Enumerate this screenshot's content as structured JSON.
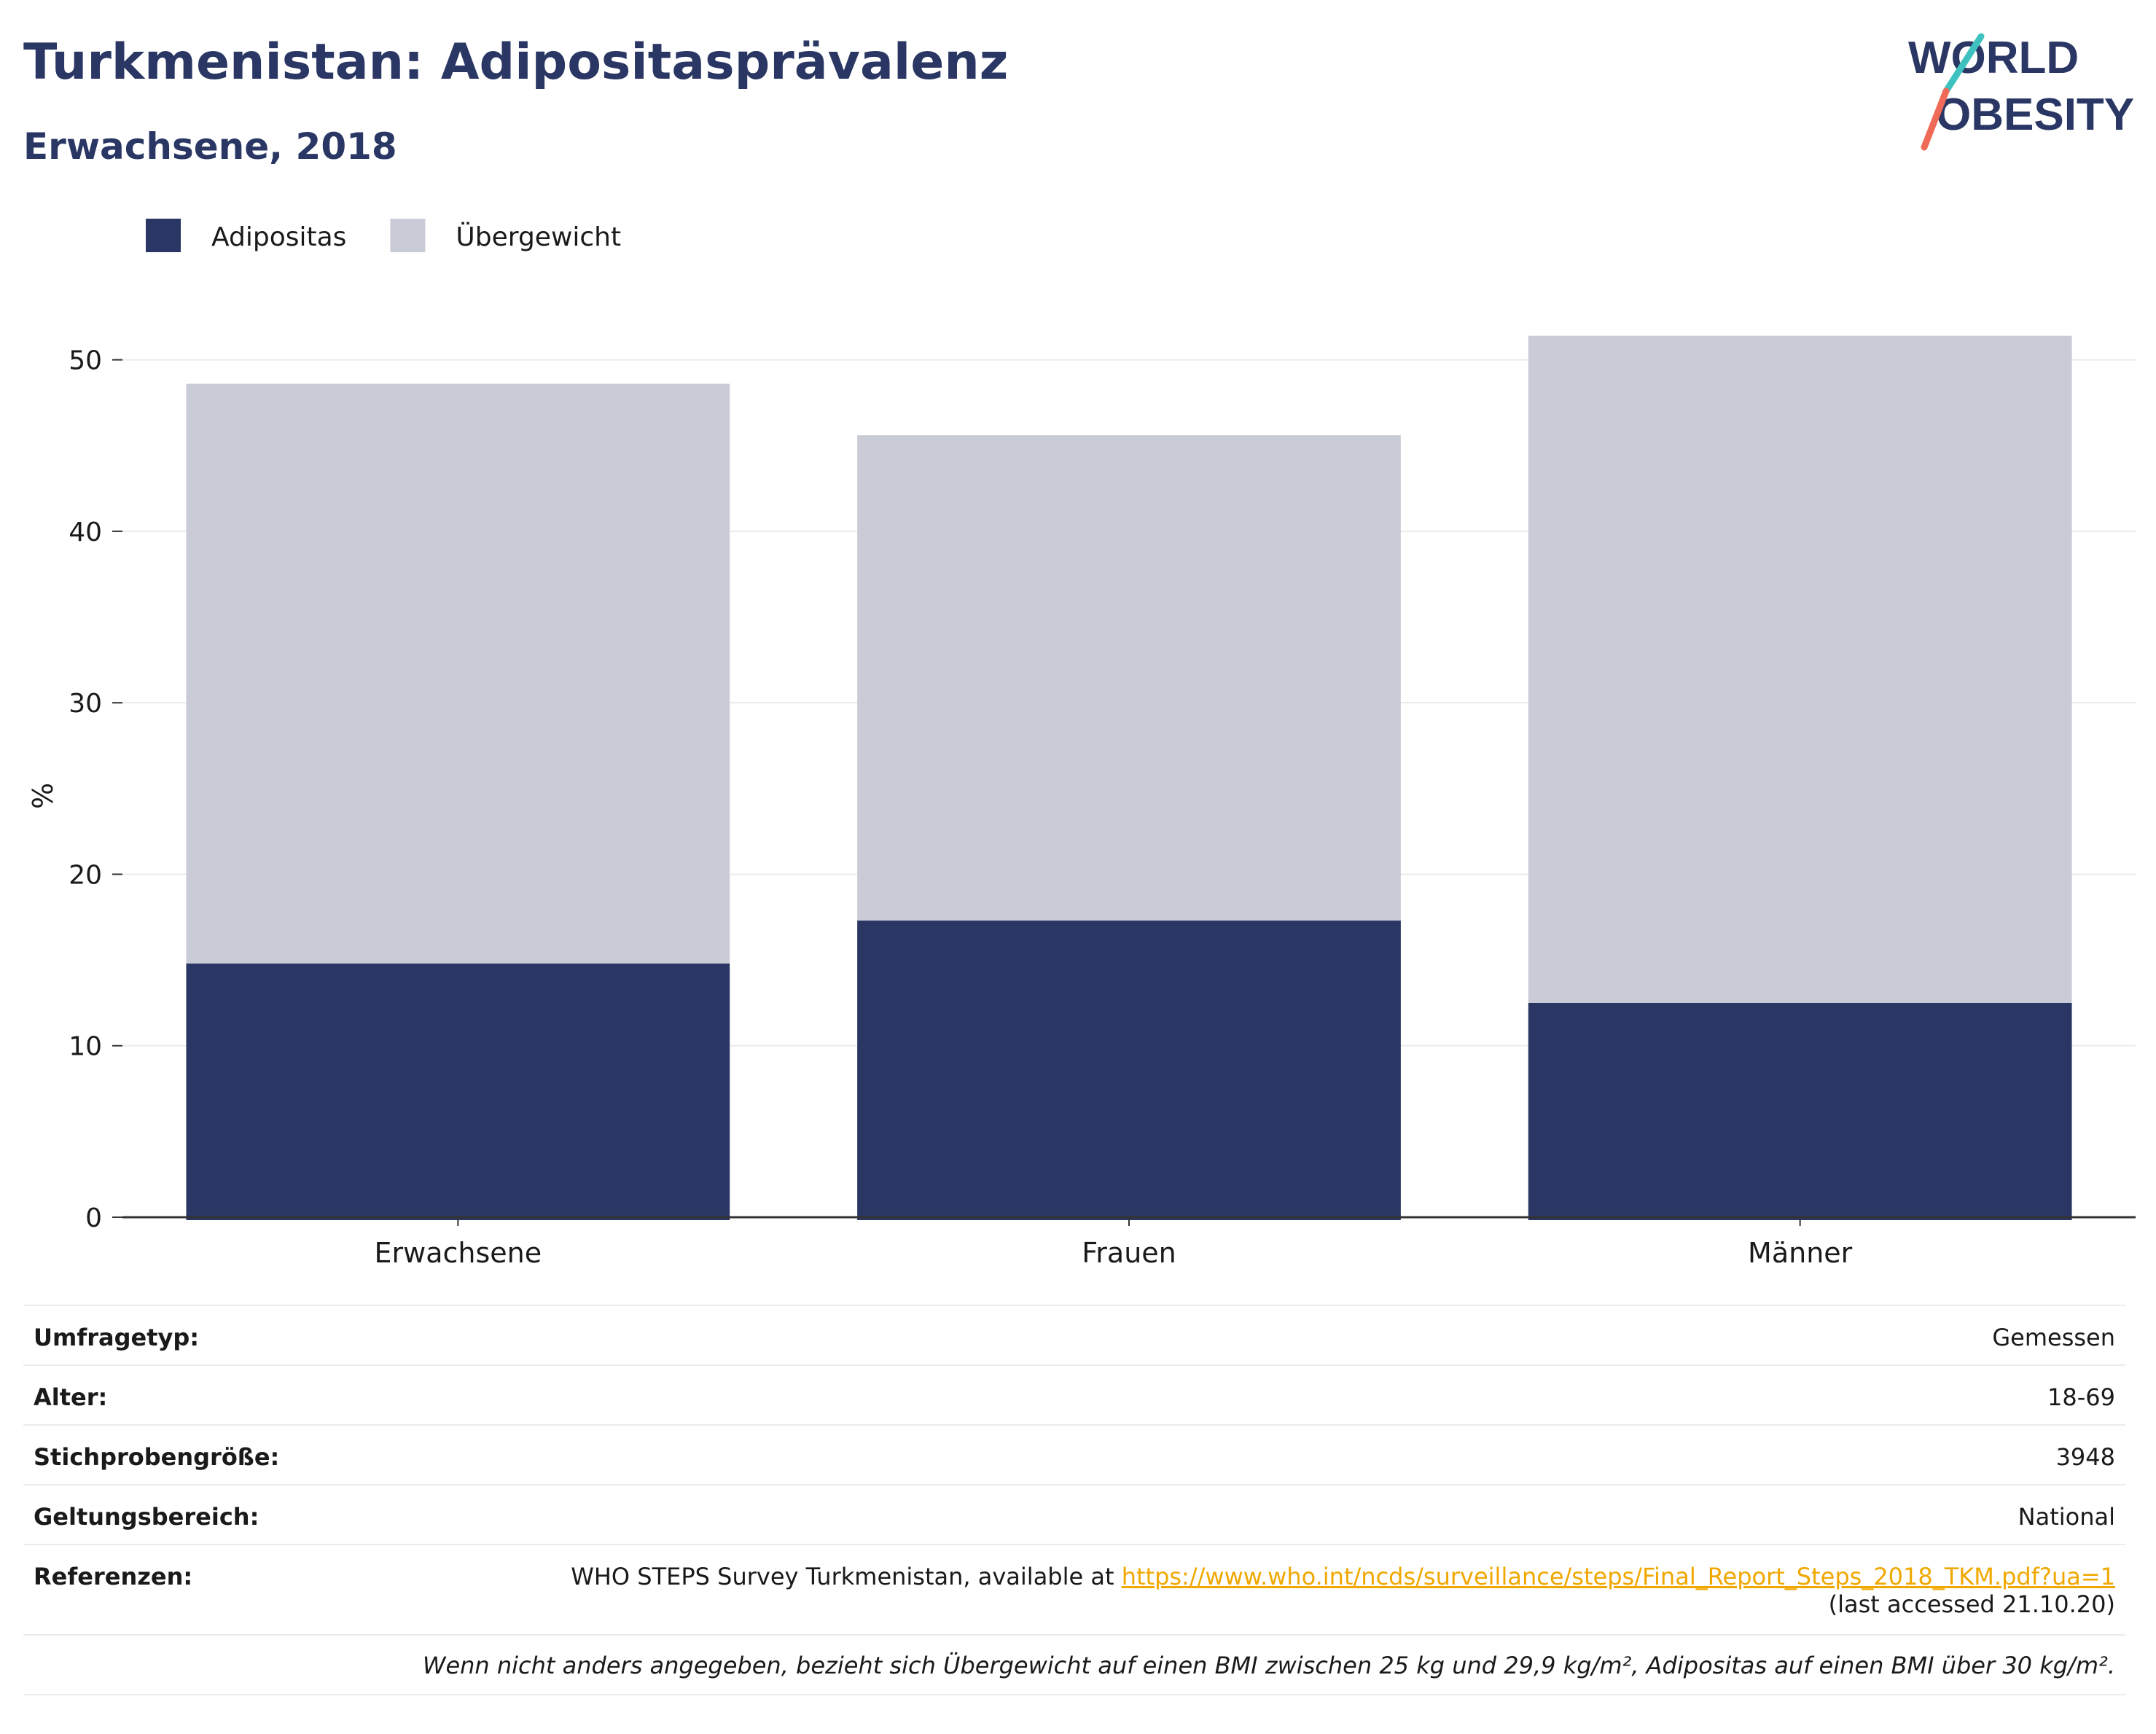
{
  "title": "Turkmenistan: Adipositasprävalenz",
  "subtitle": "Erwachsene, 2018",
  "logo": {
    "line1": "WORLD",
    "line2": "OBESITY",
    "accent_teal": "#3fc1c0",
    "accent_coral": "#ef6a57"
  },
  "colors": {
    "adipositas": "#2a3663",
    "uebergewicht": "#c9cbd7",
    "text": "#2a3663",
    "link": "#f0a800"
  },
  "chart_data": {
    "type": "bar",
    "stacked": true,
    "categories": [
      "Erwachsene",
      "Frauen",
      "Männer"
    ],
    "series": [
      {
        "name": "Adipositas",
        "values": [
          14.8,
          17.3,
          12.5
        ]
      },
      {
        "name": "Übergewicht",
        "values": [
          33.8,
          28.3,
          38.9
        ]
      }
    ],
    "xlabel": "",
    "ylabel": "%",
    "ylim": [
      0,
      55
    ],
    "yticks": [
      0,
      10,
      20,
      30,
      40,
      50
    ],
    "grid": true,
    "legend": "top-left"
  },
  "info": {
    "rows": [
      {
        "label": "Umfragetyp:",
        "value": "Gemessen"
      },
      {
        "label": "Alter:",
        "value": "18-69"
      },
      {
        "label": "Stichprobengröße:",
        "value": "3948"
      },
      {
        "label": "Geltungsbereich:",
        "value": "National"
      }
    ],
    "reference": {
      "label": "Referenzen:",
      "text": "WHO STEPS Survey Turkmenistan, available at ",
      "link": "https://www.who.int/ncds/surveillance/steps/Final_Report_Steps_2018_TKM.pdf?ua=1",
      "accessed": "(last accessed 21.10.20)"
    },
    "note": "Wenn nicht anders angegeben, bezieht sich Übergewicht auf einen BMI zwischen 25 kg und 29,9 kg/m², Adipositas auf einen BMI über 30 kg/m²."
  }
}
